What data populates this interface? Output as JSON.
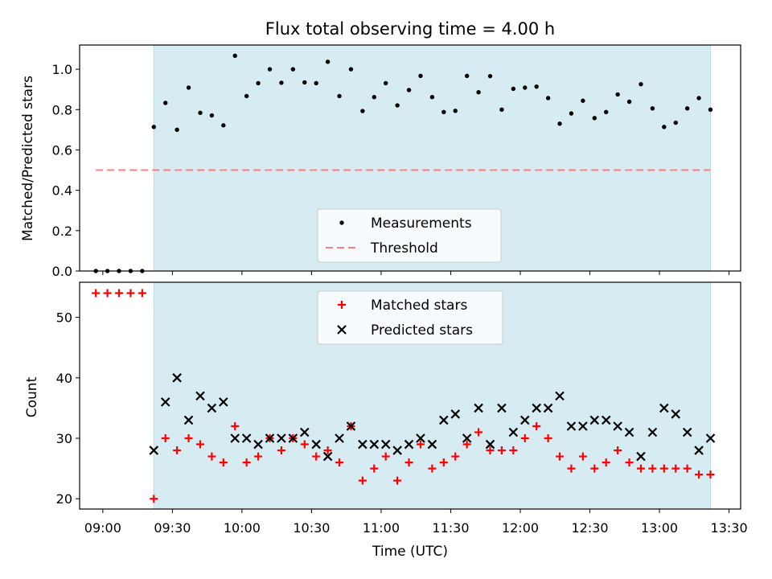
{
  "chart_data": [
    {
      "type": "scatter",
      "title": "Flux total observing time = 4.00 h",
      "xlabel": "",
      "ylabel": "Matched/Predicted stars",
      "xlim": [
        "08:50",
        "13:35"
      ],
      "ylim": [
        0,
        1.12
      ],
      "yticks": [
        "0.0",
        "0.2",
        "0.4",
        "0.6",
        "0.8",
        "1.0"
      ],
      "grid": false,
      "legend_position": "lower-center",
      "shaded_span": [
        "09:22",
        "13:22"
      ],
      "series": [
        {
          "name": "Measurements",
          "marker": "dot",
          "color": "#000000",
          "x": [
            "08:57",
            "09:02",
            "09:07",
            "09:12",
            "09:17",
            "09:22",
            "09:27",
            "09:32",
            "09:37",
            "09:42",
            "09:47",
            "09:52",
            "09:57",
            "10:02",
            "10:07",
            "10:12",
            "10:17",
            "10:22",
            "10:27",
            "10:32",
            "10:37",
            "10:42",
            "10:47",
            "10:52",
            "10:57",
            "11:02",
            "11:07",
            "11:12",
            "11:17",
            "11:22",
            "11:27",
            "11:32",
            "11:37",
            "11:42",
            "11:47",
            "11:52",
            "11:57",
            "12:02",
            "12:07",
            "12:12",
            "12:17",
            "12:22",
            "12:27",
            "12:32",
            "12:37",
            "12:42",
            "12:47",
            "12:52",
            "12:57",
            "13:02",
            "13:07",
            "13:12",
            "13:17",
            "13:22"
          ],
          "y": [
            0,
            0,
            0,
            0,
            0,
            0.714,
            0.833,
            0.7,
            0.909,
            0.784,
            0.771,
            0.722,
            1.067,
            0.867,
            0.931,
            1.0,
            0.933,
            1.0,
            0.935,
            0.931,
            1.037,
            0.867,
            1.0,
            0.793,
            0.862,
            0.931,
            0.821,
            0.897,
            0.967,
            0.862,
            0.788,
            0.794,
            0.967,
            0.886,
            0.966,
            0.8,
            0.903,
            0.909,
            0.914,
            0.857,
            0.73,
            0.781,
            0.844,
            0.758,
            0.788,
            0.875,
            0.839,
            0.926,
            0.806,
            0.714,
            0.735,
            0.806,
            0.857,
            0.8
          ]
        },
        {
          "name": "Threshold",
          "line_style": "dashed",
          "color": "#ff7f7f",
          "x": [
            "08:57",
            "13:22"
          ],
          "y": [
            0.5,
            0.5
          ]
        }
      ]
    },
    {
      "type": "scatter",
      "title": "",
      "xlabel": "Time (UTC)",
      "ylabel": "Count",
      "xlim": [
        "08:50",
        "13:35"
      ],
      "ylim": [
        18.3,
        55.8
      ],
      "xticks": [
        "09:00",
        "09:30",
        "10:00",
        "10:30",
        "11:00",
        "11:30",
        "12:00",
        "12:30",
        "13:00",
        "13:30"
      ],
      "yticks": [
        "20",
        "30",
        "40",
        "50"
      ],
      "grid": false,
      "legend_position": "upper-center",
      "shaded_span": [
        "09:22",
        "13:22"
      ],
      "series": [
        {
          "name": "Matched stars",
          "marker": "plus",
          "color": "#ff0000",
          "x": [
            "08:57",
            "09:02",
            "09:07",
            "09:12",
            "09:17",
            "09:22",
            "09:27",
            "09:32",
            "09:37",
            "09:42",
            "09:47",
            "09:52",
            "09:57",
            "10:02",
            "10:07",
            "10:12",
            "10:17",
            "10:22",
            "10:27",
            "10:32",
            "10:37",
            "10:42",
            "10:47",
            "10:52",
            "10:57",
            "11:02",
            "11:07",
            "11:12",
            "11:17",
            "11:22",
            "11:27",
            "11:32",
            "11:37",
            "11:42",
            "11:47",
            "11:52",
            "11:57",
            "12:02",
            "12:07",
            "12:12",
            "12:17",
            "12:22",
            "12:27",
            "12:32",
            "12:37",
            "12:42",
            "12:47",
            "12:52",
            "12:57",
            "13:02",
            "13:07",
            "13:12",
            "13:17",
            "13:22"
          ],
          "y": [
            54,
            54,
            54,
            54,
            54,
            20,
            30,
            28,
            30,
            29,
            27,
            26,
            32,
            26,
            27,
            30,
            28,
            30,
            29,
            27,
            28,
            26,
            32,
            23,
            25,
            27,
            23,
            26,
            29,
            25,
            26,
            27,
            29,
            31,
            28,
            28,
            28,
            30,
            32,
            30,
            27,
            25,
            27,
            25,
            26,
            28,
            26,
            25,
            25,
            25,
            25,
            25,
            24,
            24
          ]
        },
        {
          "name": "Predicted stars",
          "marker": "x",
          "color": "#000000",
          "x": [
            "09:22",
            "09:27",
            "09:32",
            "09:37",
            "09:42",
            "09:47",
            "09:52",
            "09:57",
            "10:02",
            "10:07",
            "10:12",
            "10:17",
            "10:22",
            "10:27",
            "10:32",
            "10:37",
            "10:42",
            "10:47",
            "10:52",
            "10:57",
            "11:02",
            "11:07",
            "11:12",
            "11:17",
            "11:22",
            "11:27",
            "11:32",
            "11:37",
            "11:42",
            "11:47",
            "11:52",
            "11:57",
            "12:02",
            "12:07",
            "12:12",
            "12:17",
            "12:22",
            "12:27",
            "12:32",
            "12:37",
            "12:42",
            "12:47",
            "12:52",
            "12:57",
            "13:02",
            "13:07",
            "13:12",
            "13:17",
            "13:22"
          ],
          "y": [
            28,
            36,
            40,
            33,
            37,
            35,
            36,
            30,
            30,
            29,
            30,
            30,
            30,
            31,
            29,
            27,
            30,
            32,
            29,
            29,
            29,
            28,
            29,
            30,
            29,
            33,
            34,
            30,
            35,
            29,
            35,
            31,
            33,
            35,
            35,
            37,
            32,
            32,
            33,
            33,
            32,
            31,
            27,
            31,
            35,
            34,
            31,
            28,
            30
          ]
        }
      ]
    }
  ]
}
